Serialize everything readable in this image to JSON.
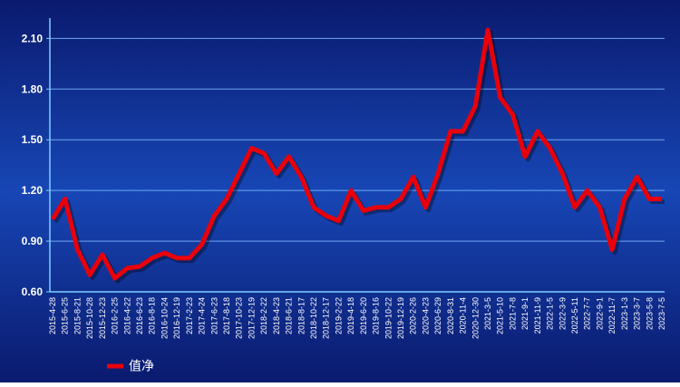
{
  "chart_data": {
    "type": "line",
    "categories": [
      "2015-4-28",
      "2015-6-25",
      "2015-8-21",
      "2015-10-28",
      "2015-12-23",
      "2016-2-25",
      "2016-4-22",
      "2016-6-23",
      "2016-8-18",
      "2016-10-24",
      "2016-12-19",
      "2017-2-23",
      "2017-4-24",
      "2017-6-23",
      "2017-8-18",
      "2017-10-23",
      "2017-12-19",
      "2018-2-22",
      "2018-4-23",
      "2018-6-21",
      "2018-8-17",
      "2018-10-22",
      "2018-12-17",
      "2019-2-22",
      "2019-4-18",
      "2019-6-20",
      "2019-8-16",
      "2019-10-22",
      "2019-12-19",
      "2020-2-26",
      "2020-4-23",
      "2020-6-29",
      "2020-8-31",
      "2020-11-4",
      "2020-12-30",
      "2021-3-5",
      "2021-5-10",
      "2021-7-8",
      "2021-9-1",
      "2021-11-9",
      "2022-1-5",
      "2022-3-9",
      "2022-5-11",
      "2022-7-7",
      "2022-9-1",
      "2022-11-7",
      "2023-1-3",
      "2023-3-7",
      "2023-5-8",
      "2023-7-5"
    ],
    "series": [
      {
        "name": "值净",
        "color": "#e8000b",
        "values": [
          1.03,
          1.15,
          0.85,
          0.7,
          0.82,
          0.68,
          0.74,
          0.75,
          0.8,
          0.83,
          0.8,
          0.8,
          0.88,
          1.05,
          1.15,
          1.3,
          1.45,
          1.42,
          1.3,
          1.4,
          1.28,
          1.1,
          1.05,
          1.02,
          1.2,
          1.08,
          1.1,
          1.1,
          1.15,
          1.28,
          1.1,
          1.3,
          1.55,
          1.55,
          1.7,
          2.15,
          1.75,
          1.65,
          1.4,
          1.55,
          1.45,
          1.3,
          1.1,
          1.2,
          1.1,
          0.85,
          1.15,
          1.28,
          1.15,
          1.15
        ]
      }
    ],
    "ylim": [
      0.6,
      2.22
    ],
    "yticks": [
      {
        "value": 0.6,
        "label": "0.60"
      },
      {
        "value": 0.9,
        "label": "0.90"
      },
      {
        "value": 1.2,
        "label": "1.20"
      },
      {
        "value": 1.5,
        "label": "1.50"
      },
      {
        "value": 1.8,
        "label": "1.80"
      },
      {
        "value": 2.1,
        "label": "2.10"
      }
    ],
    "grid": true
  }
}
